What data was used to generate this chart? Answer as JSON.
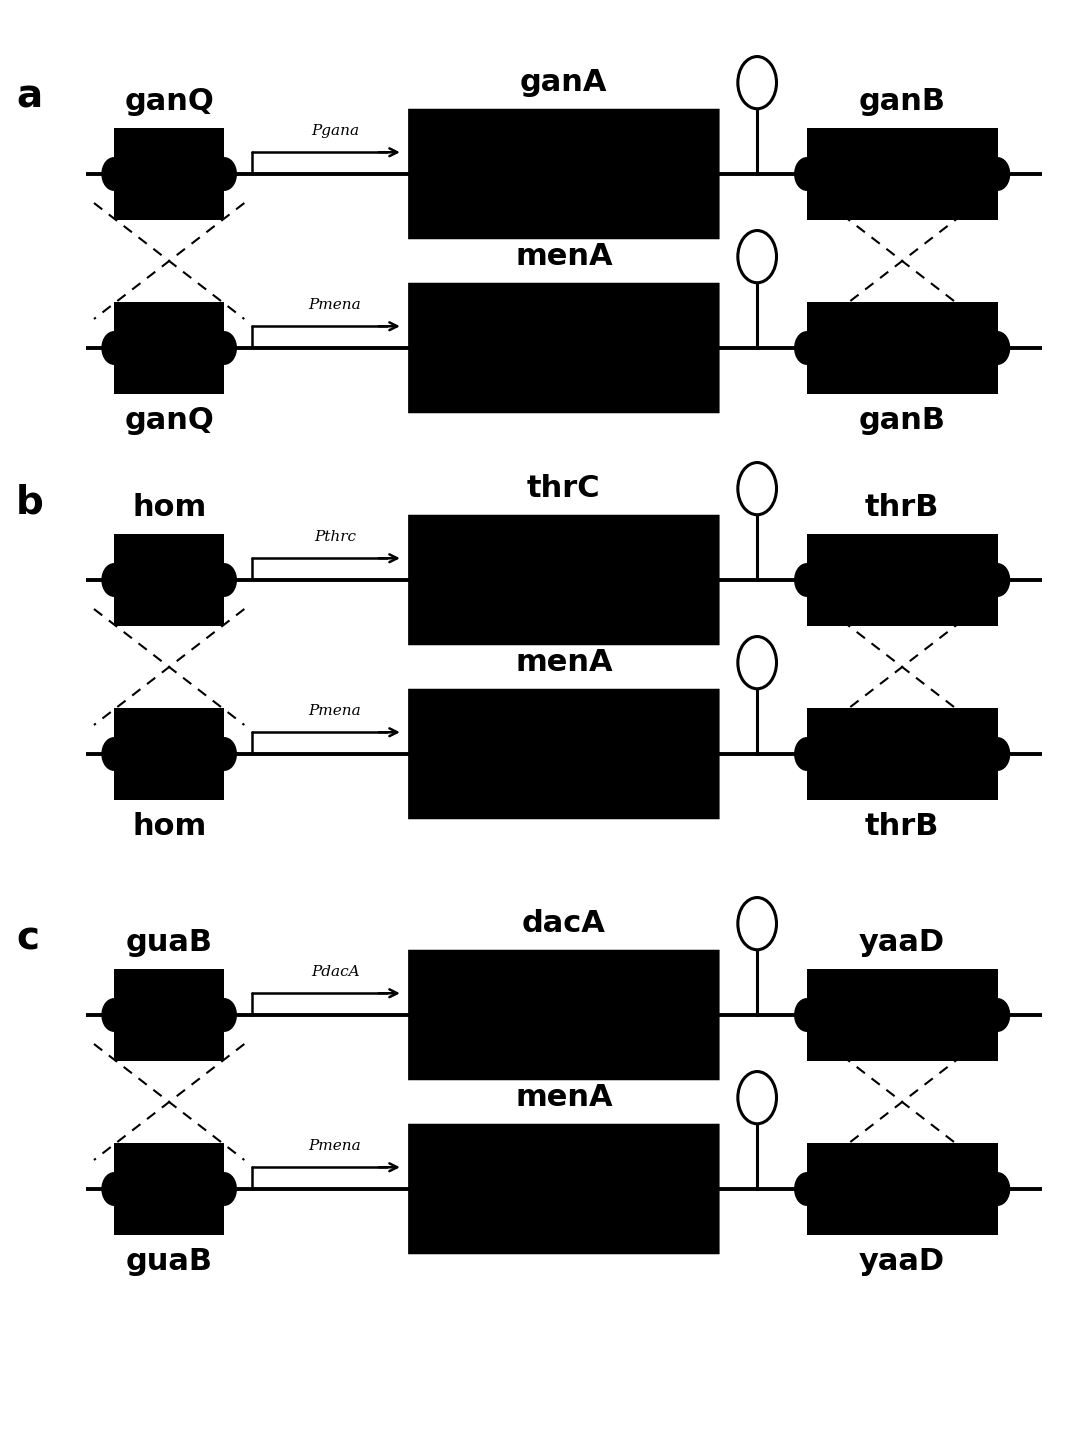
{
  "panels": [
    {
      "label": "a",
      "top_row": {
        "left_gene": "ganQ",
        "promoter": "Pgana",
        "main_gene": "ganA",
        "right_gene": "ganB"
      },
      "bottom_row": {
        "left_gene": "ganQ",
        "promoter": "Pmena",
        "main_gene": "menA",
        "right_gene": "ganB"
      }
    },
    {
      "label": "b",
      "top_row": {
        "left_gene": "hom",
        "promoter": "Pthrc",
        "main_gene": "thrC",
        "right_gene": "thrB"
      },
      "bottom_row": {
        "left_gene": "hom",
        "promoter": "Pmena",
        "main_gene": "menA",
        "right_gene": "thrB"
      }
    },
    {
      "label": "c",
      "top_row": {
        "left_gene": "guaB",
        "promoter": "PdacA",
        "main_gene": "dacA",
        "right_gene": "yaaD"
      },
      "bottom_row": {
        "left_gene": "guaB",
        "promoter": "Pmena",
        "main_gene": "menA",
        "right_gene": "yaaD"
      }
    }
  ],
  "figsize": [
    10.74,
    14.5
  ],
  "dpi": 100
}
